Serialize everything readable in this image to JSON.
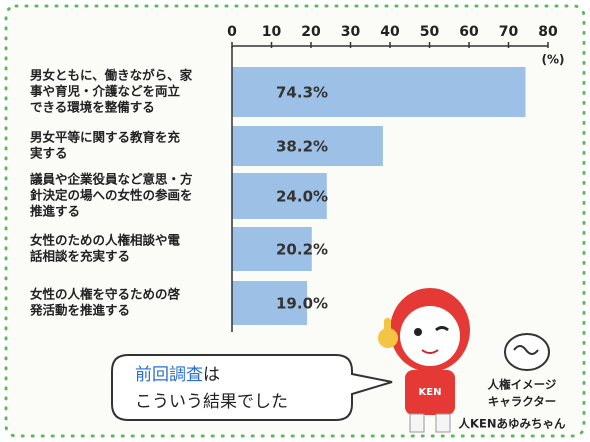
{
  "chart_data": {
    "type": "bar",
    "orientation": "horizontal",
    "categories": [
      [
        "男女ともに、働きながら、家",
        "事や育児・介護などを両立",
        "できる環境を整備する"
      ],
      [
        "男女平等に関する教育を充",
        "実する"
      ],
      [
        "議員や企業役員など意思・方",
        "針決定の場への女性の参画を",
        "推進する"
      ],
      [
        "女性のための人権相談や電",
        "話相談を充実する"
      ],
      [
        "女性の人権を守るための啓",
        "発活動を推進する"
      ]
    ],
    "values": [
      74.3,
      38.2,
      24.0,
      20.2,
      19.0
    ],
    "value_labels": [
      "74.3%",
      "38.2%",
      "24.0%",
      "20.2%",
      "19.0%"
    ],
    "color": "#9cc0e6",
    "xlim": [
      0,
      80
    ],
    "xticks": [
      0,
      10,
      20,
      30,
      40,
      50,
      60,
      70,
      80
    ],
    "unit_label": "(%)",
    "callout": {
      "highlight": "前回調査",
      "rest": "は",
      "line2": "こういう結果でした"
    },
    "character_caption": [
      "人権イメージ",
      "キャラクター",
      "人KENあゆみちゃん"
    ]
  }
}
